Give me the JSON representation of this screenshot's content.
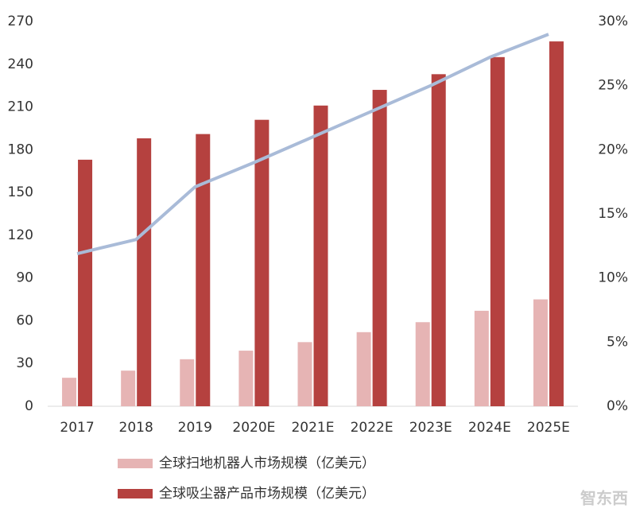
{
  "chart_data": {
    "type": "bar",
    "categories": [
      "2017",
      "2018",
      "2019",
      "2020E",
      "2021E",
      "2022E",
      "2023E",
      "2024E",
      "2025E"
    ],
    "series": [
      {
        "name": "全球扫地机器人市场规模（亿美元）",
        "type": "bar",
        "color": "#e6b4b4",
        "values": [
          20,
          25,
          33,
          39,
          45,
          52,
          59,
          67,
          75
        ]
      },
      {
        "name": "全球吸尘器产品市场规模（亿美元）",
        "type": "bar",
        "color": "#b5413f",
        "values": [
          173,
          188,
          191,
          201,
          211,
          222,
          233,
          245,
          256
        ]
      },
      {
        "type": "line",
        "axis": "y2",
        "color": "#a9bbd8",
        "values": [
          11.9,
          13,
          17.1,
          19,
          21,
          23,
          25,
          27.2,
          29
        ]
      }
    ],
    "ylim": [
      0,
      270
    ],
    "yticks": [
      0,
      30,
      60,
      90,
      120,
      150,
      180,
      210,
      240,
      270
    ],
    "y2lim": [
      0,
      30
    ],
    "y2ticks": [
      {
        "value": 0,
        "label": "0%"
      },
      {
        "value": 5,
        "label": "5%"
      },
      {
        "value": 10,
        "label": "10%"
      },
      {
        "value": 15,
        "label": "15%"
      },
      {
        "value": 20,
        "label": "20%"
      },
      {
        "value": 25,
        "label": "25%"
      },
      {
        "value": 30,
        "label": "30%"
      }
    ],
    "grid": false,
    "watermark": "智东西"
  }
}
